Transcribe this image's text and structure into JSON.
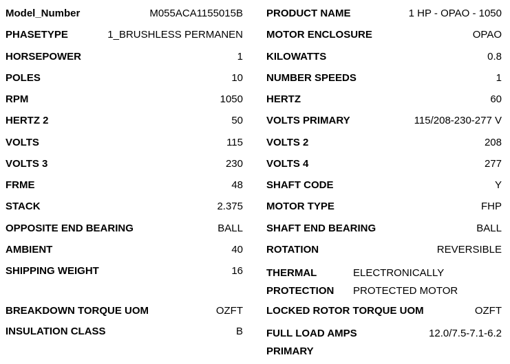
{
  "page": {
    "background_color": "#ffffff",
    "text_color": "#000000"
  },
  "spec_sheet": {
    "left_column": {
      "rows": [
        {
          "label": "Model_Number",
          "value": "M055ACA1155015B"
        },
        {
          "label": "PHASETYPE",
          "value": "1_BRUSHLESS PERMANEN"
        },
        {
          "label": "HORSEPOWER",
          "value": "1"
        },
        {
          "label": "POLES",
          "value": "10"
        },
        {
          "label": "RPM",
          "value": "1050"
        },
        {
          "label": "HERTZ 2",
          "value": "50"
        },
        {
          "label": "VOLTS",
          "value": "115"
        },
        {
          "label": "VOLTS 3",
          "value": "230"
        },
        {
          "label": "FRME",
          "value": "48"
        },
        {
          "label": "STACK",
          "value": "2.375"
        },
        {
          "label": "OPPOSITE END BEARING",
          "value": "BALL"
        },
        {
          "label": "AMBIENT",
          "value": "40"
        },
        {
          "label": "SHIPPING WEIGHT",
          "value": "16"
        },
        {
          "label": "BREAKDOWN TORQUE UOM",
          "value": "OZFT"
        },
        {
          "label": "INSULATION CLASS",
          "value": "B"
        }
      ]
    },
    "right_column": {
      "rows": [
        {
          "label": "PRODUCT NAME",
          "value": "1 HP - OPAO - 1050"
        },
        {
          "label": "MOTOR ENCLOSURE",
          "value": "OPAO"
        },
        {
          "label": "KILOWATTS",
          "value": "0.8"
        },
        {
          "label": "NUMBER SPEEDS",
          "value": "1"
        },
        {
          "label": "HERTZ",
          "value": "60"
        },
        {
          "label": "VOLTS PRIMARY",
          "value": "115/208-230-277 V"
        },
        {
          "label": "VOLTS 2",
          "value": "208"
        },
        {
          "label": "VOLTS 4",
          "value": "277"
        },
        {
          "label": "SHAFT CODE",
          "value": "Y"
        },
        {
          "label": "MOTOR TYPE",
          "value": "FHP"
        },
        {
          "label": "SHAFT END BEARING",
          "value": "BALL"
        },
        {
          "label": "ROTATION",
          "value": "REVERSIBLE"
        },
        {
          "label": "THERMAL PROTECTION",
          "value": "ELECTRONICALLY PROTECTED MOTOR"
        },
        {
          "label": "LOCKED ROTOR TORQUE UOM",
          "value": "OZFT"
        },
        {
          "label": "FULL LOAD AMPS PRIMARY",
          "value": "12.0/7.5-7.1-6.2"
        }
      ]
    }
  }
}
